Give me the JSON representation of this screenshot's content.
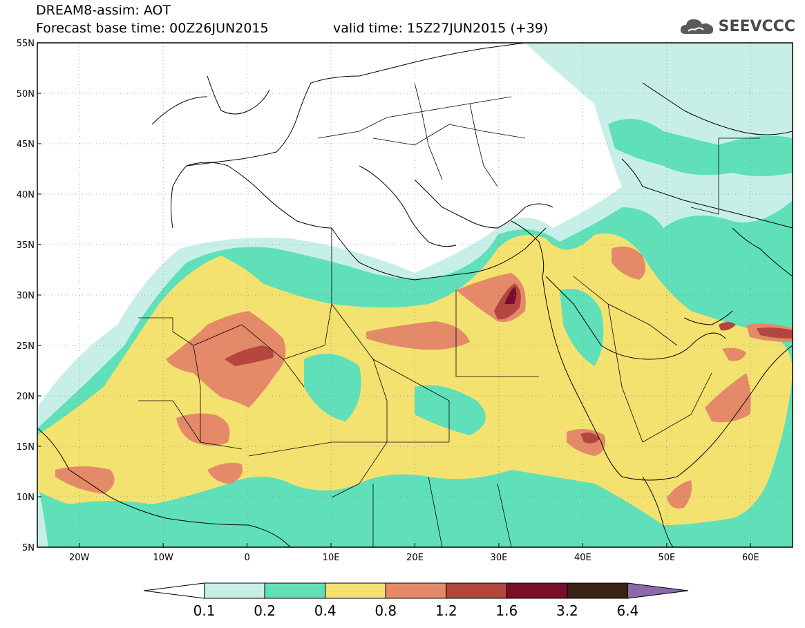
{
  "header": {
    "line1": "DREAM8-assim: AOT",
    "line2_left": "Forecast base time: 00Z26JUN2015",
    "line2_right": "valid time: 15Z27JUN2015 (+39)"
  },
  "logo": {
    "icon": "cloud-icon",
    "text": "SEEVCCC",
    "color": "#4a4a4a"
  },
  "map": {
    "lat_labels": [
      "55N",
      "50N",
      "45N",
      "40N",
      "35N",
      "30N",
      "25N",
      "20N",
      "15N",
      "10N",
      "5N"
    ],
    "lon_labels": [
      "20W",
      "10W",
      "0",
      "10E",
      "20E",
      "30E",
      "40E",
      "50E",
      "60E"
    ],
    "lat_range": [
      5,
      55
    ],
    "lon_range": [
      -25,
      65
    ],
    "grid": "dotted"
  },
  "colorbar": {
    "labels": [
      "0.1",
      "0.2",
      "0.4",
      "0.8",
      "1.2",
      "1.6",
      "3.2",
      "6.4"
    ],
    "colors": [
      "#ffffff",
      "#c7efe8",
      "#5fe0b8",
      "#f4e270",
      "#e58a68",
      "#b4463f",
      "#7b0d2c",
      "#3a2217",
      "#8a6aa8"
    ]
  }
}
